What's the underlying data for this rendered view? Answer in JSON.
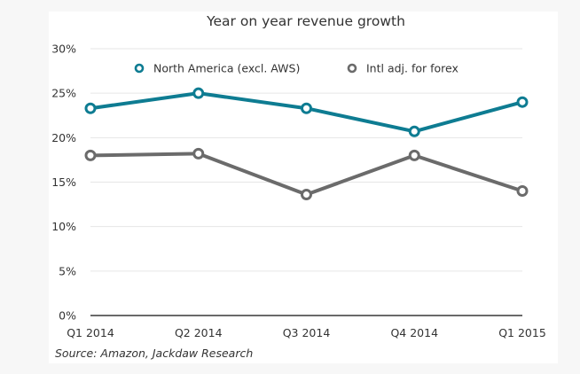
{
  "chart_data": {
    "type": "line",
    "title": "Year on year revenue growth",
    "xlabel": "",
    "ylabel": "",
    "categories": [
      "Q1 2014",
      "Q2 2014",
      "Q3 2014",
      "Q4 2014",
      "Q1 2015"
    ],
    "yticks": [
      "0%",
      "5%",
      "10%",
      "15%",
      "20%",
      "25%",
      "30%"
    ],
    "ytick_values": [
      0,
      5,
      10,
      15,
      20,
      25,
      30
    ],
    "ylim": [
      0,
      30
    ],
    "grid": true,
    "legend_position": "top",
    "series": [
      {
        "name": "North America (excl. AWS)",
        "color": "#0e7c92",
        "values": [
          23.3,
          25.0,
          23.3,
          20.7,
          24.0
        ]
      },
      {
        "name": "Intl adj. for forex",
        "color": "#6b6b6b",
        "values": [
          18.0,
          18.2,
          13.6,
          18.0,
          14.0
        ]
      }
    ],
    "source": "Source: Amazon, Jackdaw Research"
  }
}
